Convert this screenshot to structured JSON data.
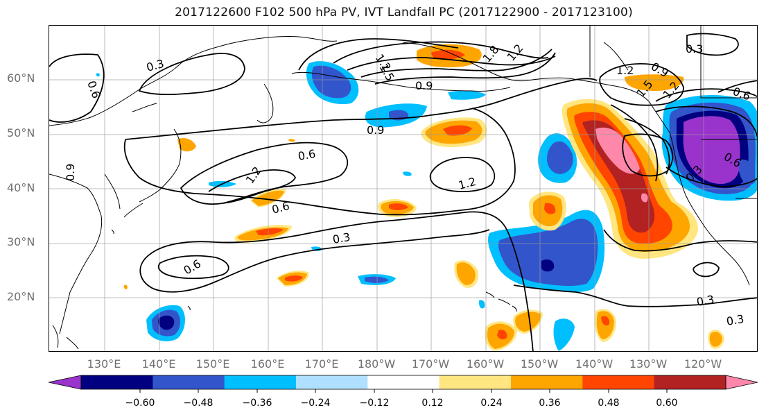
{
  "title": "2017122600 F102 500 hPa PV, IVT Landfall PC (2017122900 - 2017123100)",
  "lat_labels": [
    "60°N",
    "50°N",
    "40°N",
    "30°N",
    "20°N"
  ],
  "lon_labels": [
    "130°E",
    "140°E",
    "150°E",
    "160°E",
    "170°E",
    "180°W",
    "170°W",
    "160°W",
    "150°W",
    "140°W",
    "130°W",
    "120°W"
  ],
  "contour_labels": [
    "0.3",
    "0.6",
    "0.9",
    "1.2",
    "1.5",
    "1.8",
    "1.2",
    "0.9",
    "1.2",
    "0.9",
    "1.2",
    "0.6",
    "1.2",
    "0.9",
    "1.5",
    "1.2",
    "0.3",
    "0.6",
    "0.6",
    "0.3",
    "0.6",
    "0.3",
    "0.3",
    "0.6",
    "0.3"
  ],
  "colorbar": {
    "ticks": [
      "−0.60",
      "−0.48",
      "−0.36",
      "−0.24",
      "−0.12",
      "0.12",
      "0.24",
      "0.36",
      "0.48",
      "0.60"
    ],
    "colors": [
      "#9933cc",
      "#000080",
      "#3355cc",
      "#00bfff",
      "#b0e0ff",
      "#ffffff",
      "#ffe680",
      "#ffa500",
      "#ff4500",
      "#b22222",
      "#ff88aa"
    ]
  }
}
